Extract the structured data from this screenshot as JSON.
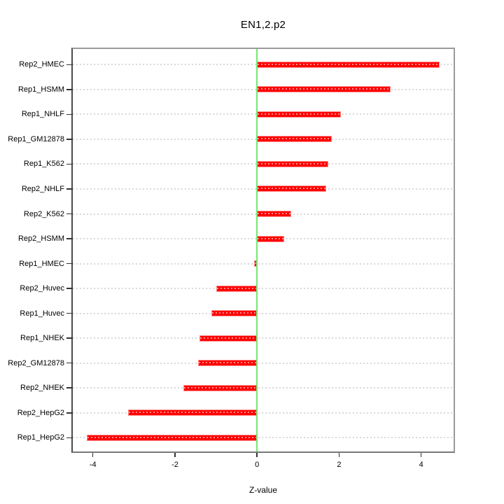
{
  "title": "EN1,2.p2",
  "chart_data": {
    "type": "bar",
    "orientation": "horizontal",
    "title": "EN1,2.p2",
    "xlabel": "Z-value",
    "categories": [
      "Rep2_HMEC",
      "Rep1_HSMM",
      "Rep1_NHLF",
      "Rep1_GM12878",
      "Rep1_K562",
      "Rep2_NHLF",
      "Rep2_K562",
      "Rep2_HSMM",
      "Rep1_HMEC",
      "Rep2_Huvec",
      "Rep1_Huvec",
      "Rep1_NHEK",
      "Rep2_GM12878",
      "Rep2_NHEK",
      "Rep2_HepG2",
      "Rep1_HepG2"
    ],
    "values": [
      4.45,
      3.25,
      2.04,
      1.83,
      1.73,
      1.69,
      0.84,
      0.66,
      -0.08,
      -1.0,
      -1.12,
      -1.4,
      -1.43,
      -1.8,
      -3.15,
      -4.15
    ],
    "x_ticks": [
      -4,
      -2,
      0,
      2,
      4
    ],
    "x_tick_labels": [
      "-4",
      "-2",
      "0",
      "2",
      "4"
    ],
    "xlim": [
      -4.49,
      4.79
    ],
    "grid": true,
    "gridline_style": "dotted",
    "legend": "none",
    "colors": {
      "bar": "#ff0000",
      "bar_edge": "#ff8f8f",
      "zero_line": "#74e874",
      "gridline": "#d9d9d9",
      "frame": "#9a9a9a",
      "tick": "#333333",
      "text": "#000000",
      "background": "#ffffff"
    }
  }
}
